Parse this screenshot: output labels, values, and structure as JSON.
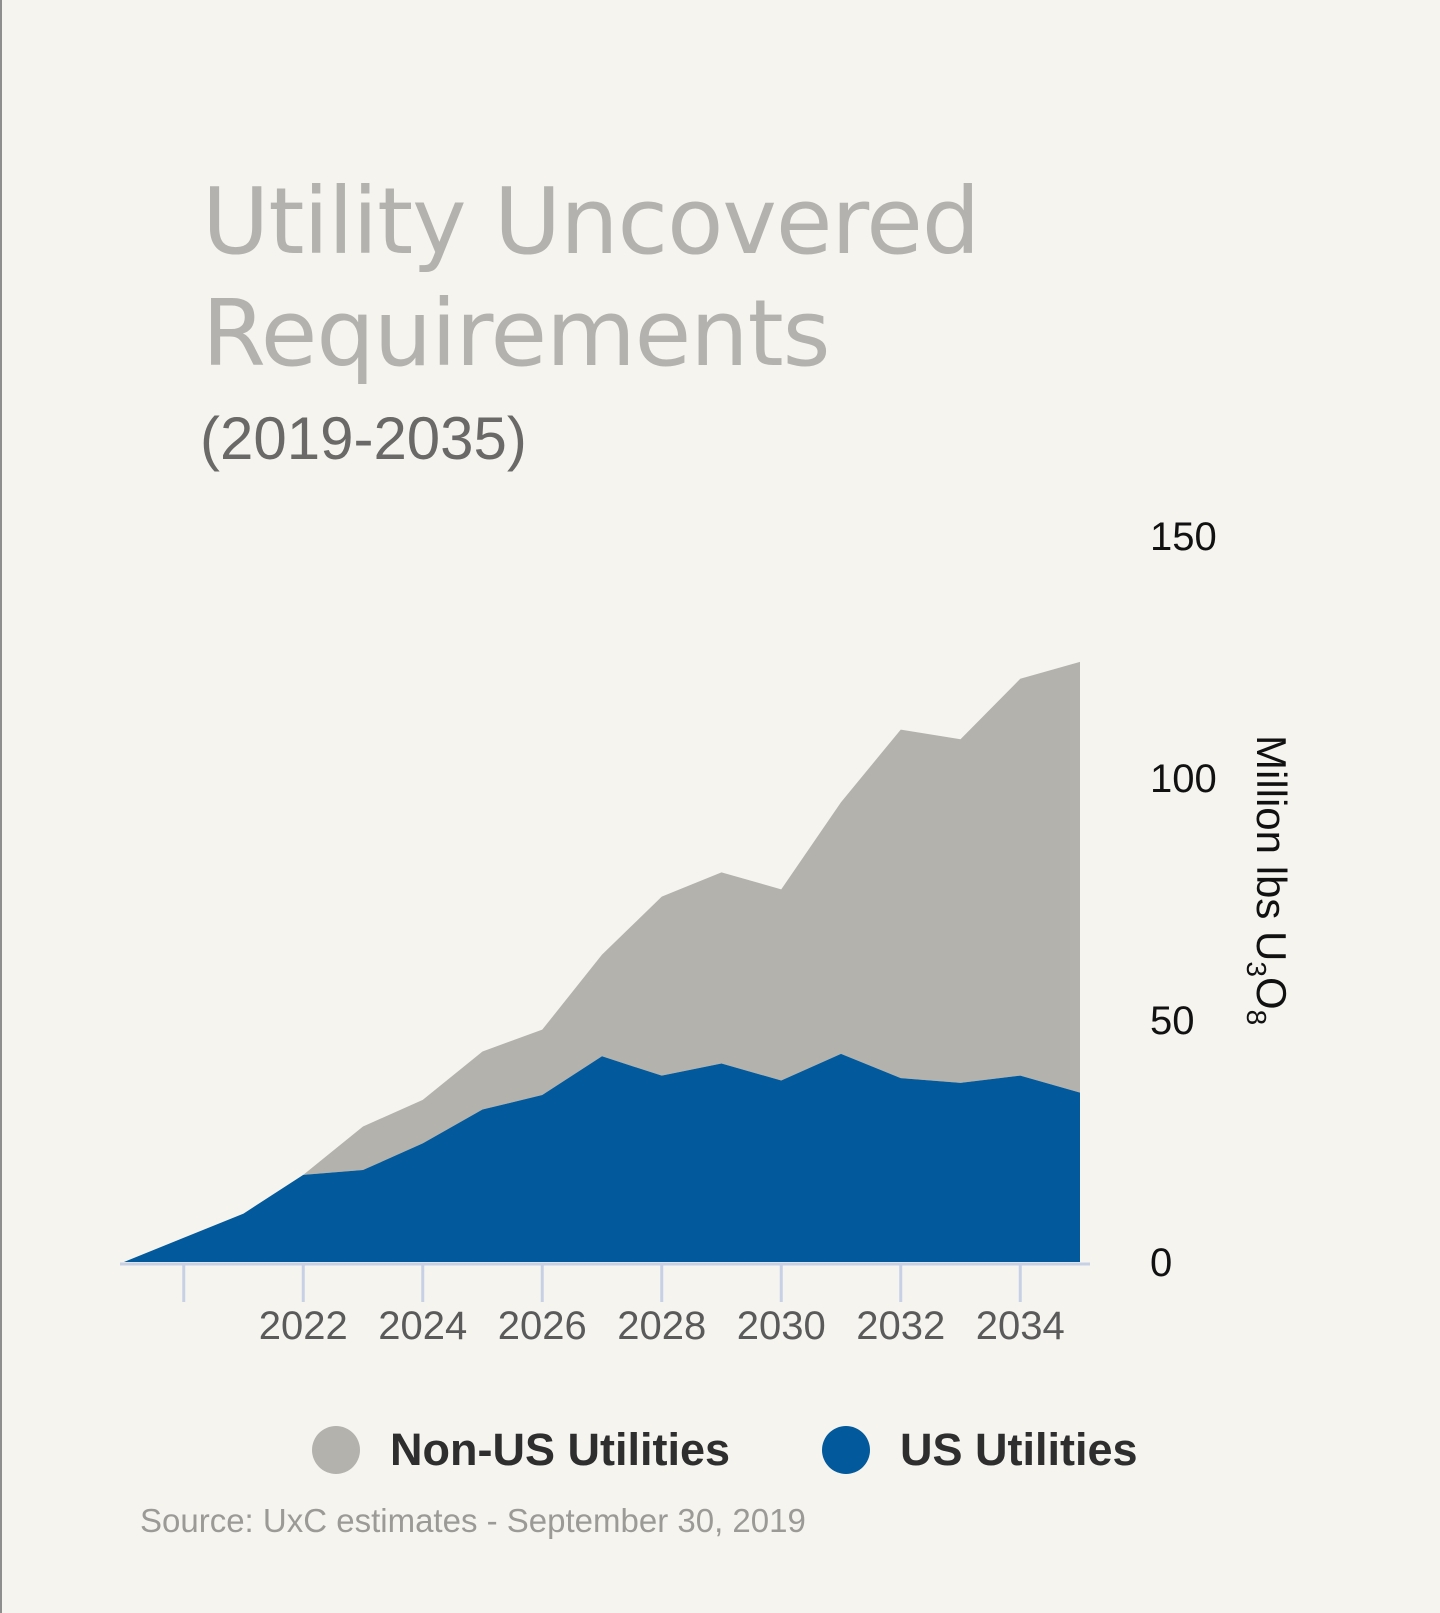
{
  "header": {
    "title_line1": "Utility Uncovered",
    "title_line2": "Requirements",
    "subtitle": "(2019-2035)"
  },
  "colors": {
    "non_us": "#b3b2ad",
    "us": "#02599c",
    "background": "#f5f4ef"
  },
  "chart_data": {
    "type": "area",
    "stacked": true,
    "title": "Utility Uncovered Requirements",
    "subtitle": "(2019-2035)",
    "x": [
      2019,
      2020,
      2021,
      2022,
      2023,
      2024,
      2025,
      2026,
      2027,
      2028,
      2029,
      2030,
      2031,
      2032,
      2033,
      2034,
      2035
    ],
    "x_ticks": [
      2020,
      2022,
      2024,
      2026,
      2028,
      2030,
      2032,
      2034
    ],
    "x_tick_labels": [
      "",
      "2022",
      "2024",
      "2026",
      "2028",
      "2030",
      "2032",
      "2034"
    ],
    "series": [
      {
        "name": "US Utilities",
        "values": [
          0,
          5,
          10,
          18,
          19,
          24.5,
          31.5,
          34.5,
          42.5,
          38.5,
          41,
          37.5,
          43,
          38,
          37,
          38.5,
          35
        ]
      },
      {
        "name": "Non-US Utilities",
        "values": [
          0,
          0,
          0,
          0,
          9,
          9,
          12,
          13.5,
          21,
          37,
          39.5,
          39.5,
          52,
          72,
          71,
          82,
          89
        ]
      }
    ],
    "totals": [
      0,
      5,
      10,
      18,
      28,
      33.5,
      43.5,
      48,
      63.5,
      75.5,
      80.5,
      77,
      95,
      110,
      108,
      120.5,
      124
    ],
    "ylim": [
      0,
      150
    ],
    "y_ticks": [
      0,
      50,
      100,
      150
    ],
    "y_tick_labels": [
      "0",
      "50",
      "100",
      "150"
    ],
    "ylabel": "Million lbs U3O8",
    "ylabel_main": "Million lbs U",
    "ylabel_sub1": "3",
    "ylabel_mid": "O",
    "ylabel_sub2": "8",
    "xlabel": ""
  },
  "legend": {
    "items": [
      {
        "label": "Non-US Utilities"
      },
      {
        "label": "US Utilities"
      }
    ]
  },
  "footer": {
    "source": "Source: UxC estimates - September 30, 2019"
  }
}
